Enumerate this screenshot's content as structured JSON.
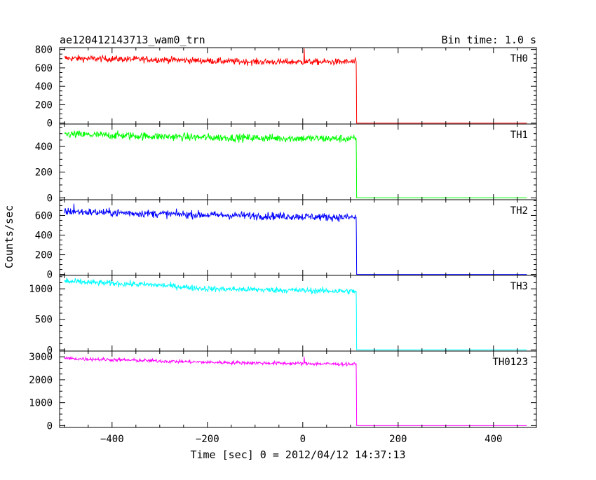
{
  "chart_data": {
    "type": "line",
    "title": "ae120412143713_wam0_trn",
    "subtitle": "Bin time: 1.0 s",
    "xlabel": "Time [sec] 0 = 2012/04/12 14:37:13",
    "ylabel": "Counts/sec",
    "xlim": [
      -510,
      490
    ],
    "x_ticks": [
      -400,
      -200,
      0,
      200,
      400
    ],
    "x_tick_labels": [
      "−400",
      "−200",
      "0",
      "200",
      "400"
    ],
    "x_minor_step": 50,
    "cutoff_time": 113,
    "data_start": -500,
    "data_end": 470,
    "panels": [
      {
        "name": "TH0",
        "color": "#ff0000",
        "ylim": [
          -10,
          820
        ],
        "y_ticks": [
          0,
          200,
          400,
          600,
          800
        ],
        "y_minor_step": 50,
        "trend": [
          [
            -500,
            705
          ],
          [
            -300,
            690
          ],
          [
            -100,
            665
          ],
          [
            100,
            665
          ]
        ],
        "spikes": [
          [
            3,
            810
          ]
        ],
        "noise": 25,
        "after_level": 0
      },
      {
        "name": "TH1",
        "color": "#00ff00",
        "ylim": [
          -15,
          575
        ],
        "y_ticks": [
          0,
          200,
          400
        ],
        "y_minor_step": 50,
        "trend": [
          [
            -500,
            495
          ],
          [
            -200,
            470
          ],
          [
            100,
            460
          ]
        ],
        "spikes": [],
        "noise": 22,
        "after_level": 0
      },
      {
        "name": "TH2",
        "color": "#0000ff",
        "ylim": [
          -10,
          760
        ],
        "y_ticks": [
          0,
          200,
          400,
          600
        ],
        "y_minor_step": 50,
        "trend": [
          [
            -500,
            640
          ],
          [
            -200,
            605
          ],
          [
            100,
            580
          ]
        ],
        "spikes": [
          [
            -480,
            720
          ]
        ],
        "noise": 28,
        "after_level": 0
      },
      {
        "name": "TH3",
        "color": "#00ffff",
        "ylim": [
          -20,
          1220
        ],
        "y_ticks": [
          0,
          500,
          1000
        ],
        "y_minor_step": 100,
        "trend": [
          [
            -500,
            1120
          ],
          [
            -300,
            1060
          ],
          [
            -200,
            1000
          ],
          [
            100,
            960
          ]
        ],
        "spikes": [
          [
            -495,
            1180
          ]
        ],
        "noise": 35,
        "after_level": 0
      },
      {
        "name": "TH0123",
        "color": "#ff00ff",
        "ylim": [
          -80,
          3250
        ],
        "y_ticks": [
          0,
          1000,
          2000,
          3000
        ],
        "y_minor_step": 250,
        "trend": [
          [
            -500,
            2930
          ],
          [
            -200,
            2760
          ],
          [
            100,
            2680
          ]
        ],
        "spikes": [
          [
            3,
            3000
          ]
        ],
        "noise": 55,
        "after_level": 0
      }
    ]
  }
}
